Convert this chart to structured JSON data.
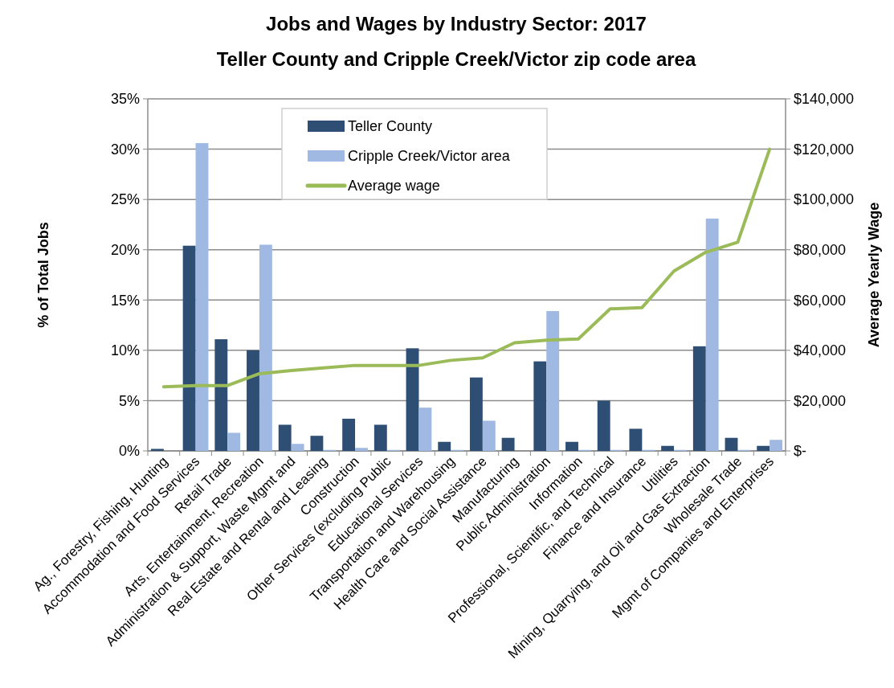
{
  "chart_data": {
    "type": "bar",
    "title": "Jobs and Wages by Industry Sector: 2017",
    "subtitle": "Teller County and Cripple Creek/Victor zip code area",
    "ylabel": "% of Total Jobs",
    "y2label": "Average Yearly Wage",
    "categories": [
      "Ag., Forestry, Fishing, Hunting",
      "Accommodation and Food Services",
      "Retail Trade",
      "Arts, Entertainment,  Recreation",
      "Administration & Support, Waste Mgmt and",
      "Real Estate and Rental and Leasing",
      "Construction",
      "Other Services (excluding Public",
      "Educational Services",
      "Transportation and Warehousing",
      "Health Care and Social Assistance",
      "Manufacturing",
      "Public Administration",
      "Information",
      "Professional, Scientific, and Technical",
      "Finance and Insurance",
      "Utilities",
      "Mining, Quarrying, and Oil and Gas Extraction",
      "Wholesale Trade",
      "Mgmt of Companies and Enterprises"
    ],
    "series": [
      {
        "name": "Teller County",
        "color": "#2e4e73",
        "values": [
          0.2,
          20.4,
          11.1,
          10.0,
          2.6,
          1.5,
          3.2,
          2.6,
          10.2,
          0.9,
          7.3,
          1.3,
          8.9,
          0.9,
          5.0,
          2.2,
          0.5,
          10.4,
          1.3,
          0.5
        ]
      },
      {
        "name": "Cripple Creek/Victor area",
        "color": "#a0b9e2",
        "values": [
          0,
          30.6,
          1.8,
          20.5,
          0.7,
          0.1,
          0.3,
          0.1,
          4.3,
          0.1,
          3.0,
          0,
          13.9,
          0.1,
          0.1,
          0.1,
          0.1,
          23.1,
          0.1,
          1.1
        ]
      },
      {
        "name": "Average wage",
        "type": "line",
        "axis": "y2",
        "color": "#9bbb59",
        "values": [
          25500,
          26000,
          26000,
          30700,
          32000,
          33000,
          34000,
          34000,
          34000,
          36000,
          37000,
          43000,
          44000,
          44500,
          56500,
          57000,
          71500,
          79000,
          83000,
          120000
        ]
      }
    ],
    "ylim": [
      0,
      35
    ],
    "yticks": [
      {
        "value": 0,
        "label": "0%"
      },
      {
        "value": 5,
        "label": "5%"
      },
      {
        "value": 10,
        "label": "10%"
      },
      {
        "value": 15,
        "label": "15%"
      },
      {
        "value": 20,
        "label": "20%"
      },
      {
        "value": 25,
        "label": "25%"
      },
      {
        "value": 30,
        "label": "30%"
      },
      {
        "value": 35,
        "label": "35%"
      }
    ],
    "y2lim": [
      0,
      140000
    ],
    "y2ticks": [
      {
        "value": 0,
        "label": "$-"
      },
      {
        "value": 20000,
        "label": "$20,000"
      },
      {
        "value": 40000,
        "label": "$40,000"
      },
      {
        "value": 60000,
        "label": "$60,000"
      },
      {
        "value": 80000,
        "label": "$80,000"
      },
      {
        "value": 100000,
        "label": "$100,000"
      },
      {
        "value": 120000,
        "label": "$120,000"
      },
      {
        "value": 140000,
        "label": "$140,000"
      }
    ],
    "grid": "y",
    "legend": "top"
  }
}
